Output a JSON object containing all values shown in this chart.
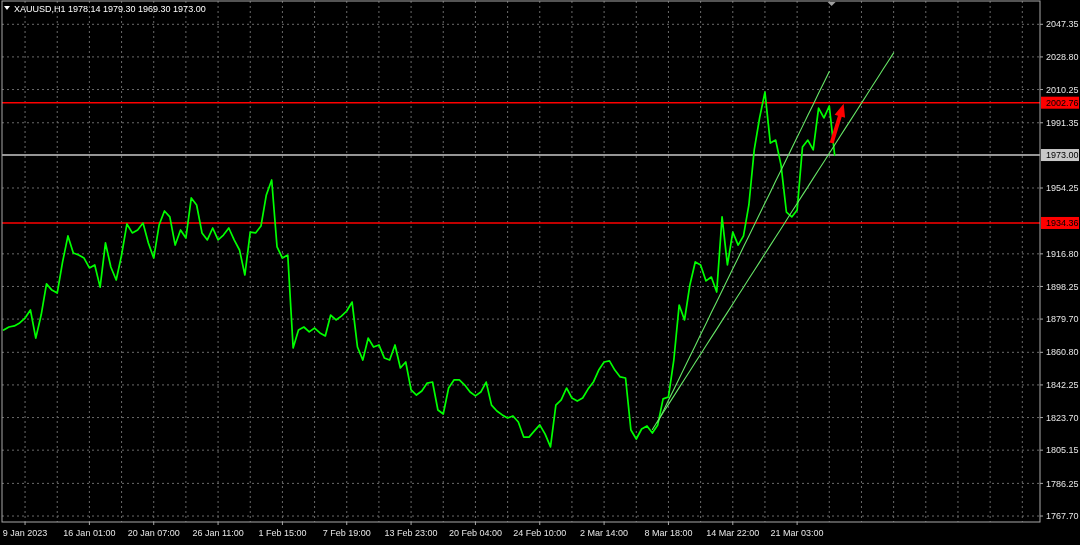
{
  "chart_data": {
    "type": "line",
    "title": "XAUUSD,H1 1978.14 1979.30 1969.30 1973.00",
    "categories": [
      null,
      null,
      null,
      null,
      "9 Jan 2023",
      null,
      null,
      null,
      null,
      null,
      null,
      null,
      null,
      null,
      null,
      null,
      "16 Jan 01:00",
      null,
      null,
      null,
      null,
      null,
      null,
      null,
      null,
      null,
      null,
      null,
      "20 Jan 07:00",
      null,
      null,
      null,
      null,
      null,
      null,
      null,
      null,
      null,
      null,
      null,
      "26 Jan 11:00",
      null,
      null,
      null,
      null,
      null,
      null,
      null,
      null,
      null,
      null,
      null,
      "1 Feb 15:00",
      null,
      null,
      null,
      null,
      null,
      null,
      null,
      null,
      null,
      null,
      null,
      "7 Feb 19:00",
      null,
      null,
      null,
      null,
      null,
      null,
      null,
      null,
      null,
      null,
      null,
      "13 Feb 23:00",
      null,
      null,
      null,
      null,
      null,
      null,
      null,
      null,
      null,
      null,
      null,
      "20 Feb 04:00",
      null,
      null,
      null,
      null,
      null,
      null,
      null,
      null,
      null,
      null,
      null,
      "24 Feb 10:00",
      null,
      null,
      null,
      null,
      null,
      null,
      null,
      null,
      null,
      null,
      null,
      "2 Mar 14:00",
      null,
      null,
      null,
      null,
      null,
      null,
      null,
      null,
      null,
      null,
      null,
      "8 Mar 18:00",
      null,
      null,
      null,
      null,
      null,
      null,
      null,
      null,
      null,
      null,
      null,
      "14 Mar 22:00",
      null,
      null,
      null,
      null,
      null,
      null,
      null,
      null,
      null,
      null,
      null,
      "21 Mar 03:00",
      null,
      null,
      null,
      null,
      null,
      null,
      null,
      null,
      null,
      null,
      null,
      null,
      null,
      null,
      null,
      null,
      null,
      null,
      null,
      null,
      null,
      null,
      null,
      null,
      null,
      null,
      null,
      null,
      null,
      null,
      null,
      null,
      null,
      null,
      null,
      null,
      null,
      null,
      null,
      null,
      null,
      null,
      null,
      null,
      null
    ],
    "ylim": [
      1764.3,
      2060.6
    ],
    "yticks": [
      {
        "value": 2047.35,
        "label": "2047.35"
      },
      {
        "value": 2028.8,
        "label": "2028.80"
      },
      {
        "value": 2010.25,
        "label": "2010.25"
      },
      {
        "value": 1991.35,
        "label": "1991.35"
      },
      {
        "value": 1954.25,
        "label": "1954.25"
      },
      {
        "value": 1916.8,
        "label": "1916.80"
      },
      {
        "value": 1898.25,
        "label": "1898.25"
      },
      {
        "value": 1879.7,
        "label": "1879.70"
      },
      {
        "value": 1860.8,
        "label": "1860.80"
      },
      {
        "value": 1842.25,
        "label": "1842.25"
      },
      {
        "value": 1823.7,
        "label": "1823.70"
      },
      {
        "value": 1805.15,
        "label": "1805.15"
      },
      {
        "value": 1786.25,
        "label": "1786.25"
      },
      {
        "value": 1767.7,
        "label": "1767.70"
      }
    ],
    "grid": true,
    "ref_lines": [
      {
        "axis": "y",
        "value": 2002.76,
        "label": "2002.76",
        "color": "#ff0000"
      },
      {
        "axis": "y",
        "value": 1973.0,
        "label": "1973.00",
        "color": "#c8c8c8"
      },
      {
        "axis": "y",
        "value": 1934.36,
        "label": "1934.36",
        "color": "#ff0000"
      }
    ],
    "series": [
      {
        "color": "#00ff00",
        "values": [
          1873.5,
          1875.2,
          1875.8,
          1877.5,
          1880.3,
          1884.9,
          1868.9,
          1882.0,
          1899.7,
          1896.2,
          1894.5,
          1912.2,
          1927.0,
          1917.3,
          1916.1,
          1914.4,
          1908.8,
          1910.5,
          1897.9,
          1923.0,
          1909.3,
          1901.9,
          1916.1,
          1933.8,
          1928.7,
          1930.4,
          1934.3,
          1923.0,
          1914.4,
          1933.2,
          1941.2,
          1937.8,
          1921.8,
          1930.4,
          1925.8,
          1948.6,
          1944.6,
          1928.7,
          1924.7,
          1931.5,
          1924.7,
          1927.5,
          1931.5,
          1924.7,
          1919.0,
          1904.8,
          1929.2,
          1928.7,
          1932.6,
          1950.3,
          1958.8,
          1920.7,
          1914.4,
          1916.1,
          1863.3,
          1873.5,
          1875.2,
          1872.4,
          1874.6,
          1871.8,
          1870.1,
          1882.0,
          1879.2,
          1881.4,
          1884.3,
          1889.4,
          1863.8,
          1856.4,
          1868.9,
          1863.8,
          1865.0,
          1857.6,
          1856.4,
          1865.0,
          1851.9,
          1855.3,
          1839.4,
          1836.5,
          1838.8,
          1843.3,
          1843.9,
          1828.0,
          1825.7,
          1840.5,
          1845.1,
          1845.1,
          1842.2,
          1838.2,
          1836.0,
          1838.2,
          1843.9,
          1830.8,
          1827.4,
          1825.2,
          1823.4,
          1824.6,
          1821.2,
          1812.6,
          1812.6,
          1816.1,
          1819.5,
          1814.3,
          1807.0,
          1830.8,
          1833.7,
          1840.5,
          1834.8,
          1833.1,
          1834.8,
          1839.9,
          1843.9,
          1850.7,
          1855.3,
          1855.9,
          1850.7,
          1846.8,
          1846.2,
          1816.6,
          1811.5,
          1817.2,
          1818.9,
          1814.9,
          1819.5,
          1834.3,
          1835.4,
          1856.4,
          1887.7,
          1879.2,
          1899.1,
          1912.2,
          1910.5,
          1901.4,
          1903.6,
          1895.1,
          1937.8,
          1910.5,
          1929.2,
          1921.8,
          1927.0,
          1944.6,
          1975.9,
          1994.1,
          2008.8,
          1979.8,
          1981.5,
          1967.3,
          1940.6,
          1937.8,
          1941.7,
          1977.6,
          1981.5,
          1975.9,
          1999.7,
          1994.1,
          2000.9,
          1973.0,
          null,
          null,
          null,
          null,
          null,
          null,
          null,
          null,
          null,
          null,
          null,
          null,
          null,
          null,
          null,
          null,
          null,
          null,
          null,
          null,
          null,
          null,
          null,
          null,
          null,
          null,
          null,
          null,
          null,
          null,
          null,
          null,
          null,
          null,
          null,
          null,
          null,
          null
        ]
      },
      {
        "type": "line",
        "color": "#66e666",
        "values": [
          null,
          null,
          null,
          null,
          null,
          null,
          null,
          null,
          null,
          null,
          null,
          null,
          null,
          null,
          null,
          null,
          null,
          null,
          null,
          null,
          null,
          null,
          null,
          null,
          null,
          null,
          null,
          null,
          null,
          null,
          null,
          null,
          null,
          null,
          null,
          null,
          null,
          null,
          null,
          null,
          null,
          null,
          null,
          null,
          null,
          null,
          null,
          null,
          null,
          null,
          null,
          null,
          null,
          null,
          null,
          null,
          null,
          null,
          null,
          null,
          null,
          null,
          null,
          null,
          null,
          null,
          null,
          null,
          null,
          null,
          null,
          null,
          null,
          null,
          null,
          null,
          null,
          null,
          null,
          null,
          null,
          null,
          null,
          null,
          null,
          null,
          null,
          null,
          null,
          null,
          null,
          null,
          null,
          null,
          null,
          null,
          null,
          null,
          null,
          null,
          null,
          null,
          null,
          null,
          null,
          null,
          null,
          null,
          null,
          null,
          null,
          null,
          null,
          null,
          null,
          null,
          null,
          null,
          null,
          null,
          null,
          null,
          1821.0,
          1827.2,
          1833.5,
          1839.7,
          1845.9,
          1852.2,
          1858.4,
          1864.6,
          1870.9,
          1877.1,
          1883.4,
          1889.6,
          1895.8,
          1902.1,
          1908.3,
          1914.5,
          1920.8,
          1927.0,
          1933.2,
          1939.5,
          1945.7,
          1951.9,
          1958.2,
          1964.4,
          1970.6,
          1976.9,
          1983.1,
          1989.3,
          1995.6,
          2001.8,
          2008.1,
          2014.3,
          2020.5,
          null,
          null,
          null,
          null,
          null,
          null,
          null,
          null,
          null,
          null,
          null,
          null,
          null,
          null,
          null,
          null,
          null,
          null,
          null,
          null,
          null,
          null,
          null,
          null,
          null,
          null,
          null,
          null,
          null,
          null,
          null,
          null,
          null,
          null,
          null,
          null,
          null,
          null,
          null
        ]
      },
      {
        "type": "line",
        "color": "#66e666",
        "values": [
          null,
          null,
          null,
          null,
          null,
          null,
          null,
          null,
          null,
          null,
          null,
          null,
          null,
          null,
          null,
          null,
          null,
          null,
          null,
          null,
          null,
          null,
          null,
          null,
          null,
          null,
          null,
          null,
          null,
          null,
          null,
          null,
          null,
          null,
          null,
          null,
          null,
          null,
          null,
          null,
          null,
          null,
          null,
          null,
          null,
          null,
          null,
          null,
          null,
          null,
          null,
          null,
          null,
          null,
          null,
          null,
          null,
          null,
          null,
          null,
          null,
          null,
          null,
          null,
          null,
          null,
          null,
          null,
          null,
          null,
          null,
          null,
          null,
          null,
          null,
          null,
          null,
          null,
          null,
          null,
          null,
          null,
          null,
          null,
          null,
          null,
          null,
          null,
          null,
          null,
          null,
          null,
          null,
          null,
          null,
          null,
          null,
          null,
          null,
          null,
          null,
          null,
          null,
          null,
          null,
          null,
          null,
          null,
          null,
          null,
          null,
          null,
          null,
          null,
          null,
          null,
          null,
          null,
          null,
          null,
          null,
          1816.9,
          1821.7,
          1826.4,
          1831.2,
          1835.9,
          1840.7,
          1845.5,
          1850.2,
          1855.0,
          1859.7,
          1864.5,
          1869.3,
          1874.0,
          1878.8,
          1883.5,
          1888.3,
          1893.1,
          1897.8,
          1902.6,
          1907.3,
          1912.1,
          1916.9,
          1921.6,
          1926.4,
          1931.1,
          1935.9,
          1940.7,
          1945.4,
          1950.2,
          1954.9,
          1959.7,
          1964.5,
          1969.2,
          1974.0,
          1978.7,
          1983.5,
          1988.3,
          1993.0,
          1997.8,
          2002.5,
          2007.3,
          2012.1,
          2016.8,
          2021.6,
          2026.3,
          2031.1,
          null,
          null,
          null,
          null,
          null,
          null,
          null,
          null,
          null,
          null,
          null,
          null,
          null,
          null,
          null,
          null,
          null,
          null,
          null,
          null,
          null,
          null,
          null,
          null,
          null,
          null,
          null
        ]
      }
    ]
  }
}
